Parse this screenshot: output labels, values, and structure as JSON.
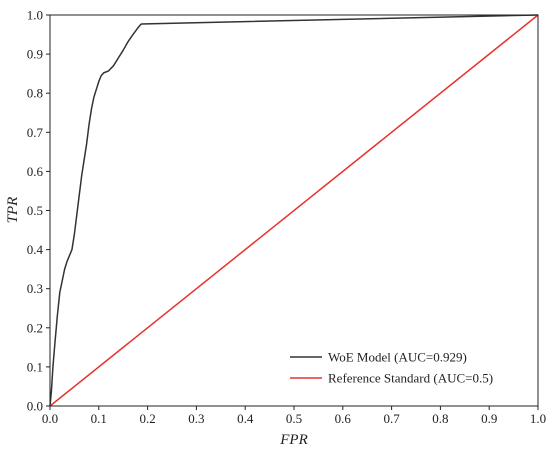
{
  "chart_data": {
    "type": "line",
    "title": "",
    "xlabel": "FPR",
    "ylabel": "TPR",
    "xlim": [
      0,
      1
    ],
    "ylim": [
      0,
      1
    ],
    "xticks": [
      "0.0",
      "0.1",
      "0.2",
      "0.3",
      "0.4",
      "0.5",
      "0.6",
      "0.7",
      "0.8",
      "0.9",
      "1.0"
    ],
    "yticks": [
      "0.0",
      "0.1",
      "0.2",
      "0.3",
      "0.4",
      "0.5",
      "0.6",
      "0.7",
      "0.8",
      "0.9",
      "1.0"
    ],
    "grid": false,
    "legend_position": "bottom-right",
    "series": [
      {
        "name": "WoE Model (AUC=0.929)",
        "color": "#333333",
        "points": [
          [
            0.0,
            0.0
          ],
          [
            0.003,
            0.04
          ],
          [
            0.006,
            0.1
          ],
          [
            0.01,
            0.16
          ],
          [
            0.015,
            0.23
          ],
          [
            0.02,
            0.29
          ],
          [
            0.025,
            0.32
          ],
          [
            0.03,
            0.35
          ],
          [
            0.035,
            0.37
          ],
          [
            0.04,
            0.385
          ],
          [
            0.045,
            0.4
          ],
          [
            0.05,
            0.44
          ],
          [
            0.055,
            0.49
          ],
          [
            0.06,
            0.54
          ],
          [
            0.065,
            0.59
          ],
          [
            0.07,
            0.63
          ],
          [
            0.075,
            0.67
          ],
          [
            0.08,
            0.72
          ],
          [
            0.085,
            0.76
          ],
          [
            0.09,
            0.79
          ],
          [
            0.095,
            0.81
          ],
          [
            0.1,
            0.83
          ],
          [
            0.105,
            0.845
          ],
          [
            0.11,
            0.852
          ],
          [
            0.12,
            0.857
          ],
          [
            0.13,
            0.87
          ],
          [
            0.14,
            0.89
          ],
          [
            0.15,
            0.91
          ],
          [
            0.16,
            0.932
          ],
          [
            0.17,
            0.95
          ],
          [
            0.18,
            0.967
          ],
          [
            0.187,
            0.977
          ],
          [
            1.0,
            1.0
          ]
        ]
      },
      {
        "name": "Reference Standard (AUC=0.5)",
        "color": "#e8312d",
        "points": [
          [
            0.0,
            0.0
          ],
          [
            1.0,
            1.0
          ]
        ]
      }
    ]
  }
}
